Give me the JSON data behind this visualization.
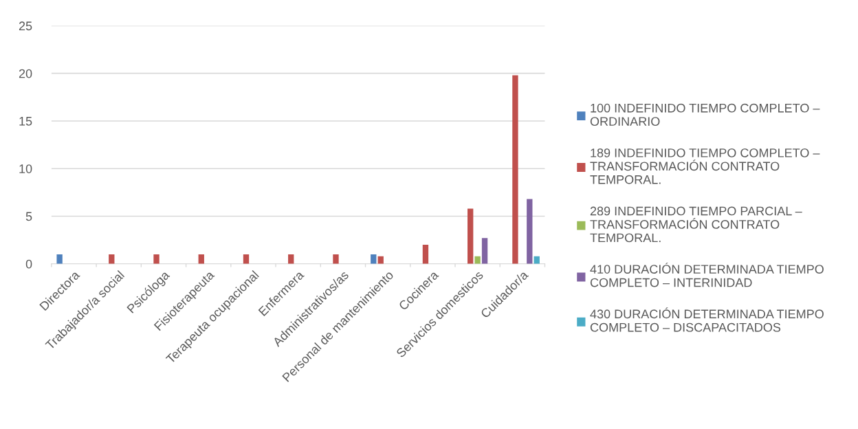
{
  "chart_data": {
    "type": "bar",
    "categories": [
      "Directora",
      "Trabajador/a social",
      "Psicóloga",
      "Fisioterapeuta",
      "Terapeuta ocupacional",
      "Enfermera",
      "Administrativos/as",
      "Personal de mantenimiento",
      "Cocinera",
      "Servicios domesticos",
      "Cuidador/a"
    ],
    "series": [
      {
        "name": "100 INDEFINIDO TIEMPO COMPLETO – ORDINARIO",
        "color": "#4f81bd",
        "values": [
          1,
          null,
          null,
          null,
          null,
          null,
          null,
          1,
          null,
          null,
          null
        ]
      },
      {
        "name": "189 INDEFINIDO TIEMPO COMPLETO – TRANSFORMACIÓN CONTRATO TEMPORAL.",
        "color": "#c0504d",
        "values": [
          null,
          1,
          1,
          1,
          1,
          1,
          1,
          0.8,
          2,
          5.8,
          19.8
        ]
      },
      {
        "name": "289 INDEFINIDO TIEMPO PARCIAL – TRANSFORMACIÓN CONTRATO TEMPORAL.",
        "color": "#9bbb59",
        "values": [
          null,
          null,
          null,
          null,
          null,
          null,
          null,
          null,
          null,
          0.8,
          null
        ]
      },
      {
        "name": "410 DURACIÓN DETERMINADA TIEMPO COMPLETO – INTERINIDAD",
        "color": "#8064a2",
        "values": [
          null,
          null,
          null,
          null,
          null,
          null,
          null,
          null,
          null,
          2.7,
          6.8
        ]
      },
      {
        "name": "430 DURACIÓN DETERMINADA TIEMPO COMPLETO – DISCAPACITADOS",
        "color": "#4bacc6",
        "values": [
          null,
          null,
          null,
          null,
          null,
          null,
          null,
          null,
          null,
          null,
          0.8
        ]
      }
    ],
    "ylim": [
      0,
      25
    ],
    "yticks": [
      0,
      5,
      10,
      15,
      20,
      25
    ],
    "grid": "y",
    "legend": "right"
  }
}
